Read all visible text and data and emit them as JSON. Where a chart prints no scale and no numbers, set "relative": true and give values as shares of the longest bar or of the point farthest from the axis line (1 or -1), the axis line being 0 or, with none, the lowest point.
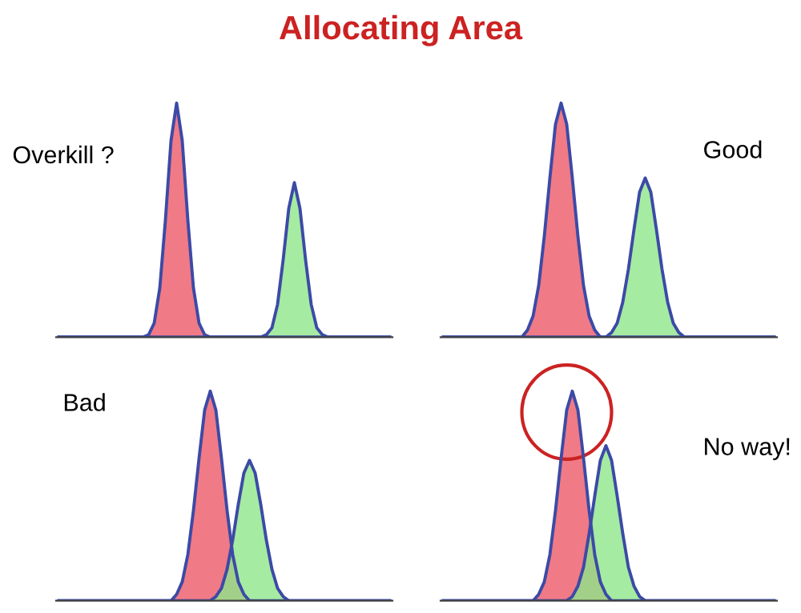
{
  "chart_data": [
    {
      "type": "area",
      "relative": true,
      "title": "Allocating Area",
      "annotations": [
        "Overkill ?"
      ],
      "categories": [
        null,
        null,
        null,
        null,
        null,
        null,
        null,
        null,
        null,
        null,
        null,
        null,
        null,
        null,
        null,
        null,
        null,
        null,
        null,
        null,
        null,
        null,
        null,
        null,
        null,
        null,
        null,
        null,
        null,
        null,
        null,
        null,
        null,
        null,
        null,
        null,
        null,
        null,
        null,
        null,
        null,
        null,
        null,
        null,
        null,
        null,
        null,
        null,
        null,
        null,
        null,
        null,
        null,
        null,
        null,
        null,
        null,
        null,
        null,
        null
      ],
      "series": [
        {
          "color": "#f07a86",
          "values": [
            0,
            0,
            0,
            0,
            0,
            0,
            0,
            0,
            0,
            0,
            0,
            0,
            0,
            0,
            0,
            0,
            0.01,
            0.06,
            0.21,
            0.5,
            0.84,
            1,
            0.84,
            0.5,
            0.21,
            0.06,
            0.01,
            0,
            0,
            0,
            0,
            0,
            0,
            0,
            0,
            0,
            0,
            0,
            0,
            0,
            0,
            0,
            0,
            0,
            0,
            0,
            0,
            0,
            0,
            0,
            0,
            0,
            0,
            0,
            0,
            0,
            0,
            0,
            0,
            0
          ]
        },
        {
          "color": "#8ee68a",
          "values": [
            0,
            0,
            0,
            0,
            0,
            0,
            0,
            0,
            0,
            0,
            0,
            0,
            0,
            0,
            0,
            0,
            0,
            0,
            0,
            0,
            0,
            0,
            0,
            0,
            0,
            0,
            0,
            0,
            0,
            0,
            0,
            0,
            0,
            0,
            0,
            0,
            0,
            0.01,
            0.04,
            0.14,
            0.33,
            0.55,
            0.66,
            0.55,
            0.33,
            0.14,
            0.04,
            0.01,
            0,
            0,
            0,
            0,
            0,
            0,
            0,
            0,
            0,
            0,
            0,
            0
          ]
        }
      ]
    },
    {
      "type": "area",
      "relative": true,
      "annotations": [
        "Good"
      ],
      "categories": [
        null,
        null,
        null,
        null,
        null,
        null,
        null,
        null,
        null,
        null,
        null,
        null,
        null,
        null,
        null,
        null,
        null,
        null,
        null,
        null,
        null,
        null,
        null,
        null,
        null,
        null,
        null,
        null,
        null,
        null,
        null,
        null,
        null,
        null,
        null,
        null,
        null,
        null,
        null,
        null,
        null,
        null,
        null,
        null,
        null,
        null,
        null,
        null,
        null,
        null,
        null,
        null,
        null,
        null,
        null,
        null,
        null,
        null,
        null,
        null
      ],
      "series": [
        {
          "color": "#f07a86",
          "values": [
            0,
            0,
            0,
            0,
            0,
            0,
            0,
            0,
            0,
            0,
            0,
            0,
            0,
            0,
            0,
            0.03,
            0.09,
            0.22,
            0.43,
            0.68,
            0.91,
            1,
            0.91,
            0.68,
            0.43,
            0.22,
            0.09,
            0.03,
            0,
            0,
            0,
            0,
            0,
            0,
            0,
            0,
            0,
            0,
            0,
            0,
            0,
            0,
            0,
            0,
            0,
            0,
            0,
            0,
            0,
            0,
            0,
            0,
            0,
            0,
            0,
            0,
            0,
            0,
            0,
            0
          ]
        },
        {
          "color": "#8ee68a",
          "values": [
            0,
            0,
            0,
            0,
            0,
            0,
            0,
            0,
            0,
            0,
            0,
            0,
            0,
            0,
            0,
            0,
            0,
            0,
            0,
            0,
            0,
            0,
            0,
            0,
            0,
            0,
            0,
            0,
            0,
            0,
            0.02,
            0.06,
            0.15,
            0.29,
            0.46,
            0.62,
            0.68,
            0.62,
            0.46,
            0.29,
            0.15,
            0.06,
            0.02,
            0,
            0,
            0,
            0,
            0,
            0,
            0,
            0,
            0,
            0,
            0,
            0,
            0,
            0,
            0,
            0,
            0
          ]
        }
      ]
    },
    {
      "type": "area",
      "relative": true,
      "annotations": [
        "Bad"
      ],
      "categories": [
        null,
        null,
        null,
        null,
        null,
        null,
        null,
        null,
        null,
        null,
        null,
        null,
        null,
        null,
        null,
        null,
        null,
        null,
        null,
        null,
        null,
        null,
        null,
        null,
        null,
        null,
        null,
        null,
        null,
        null,
        null,
        null,
        null,
        null,
        null,
        null,
        null,
        null,
        null,
        null,
        null,
        null,
        null,
        null,
        null,
        null,
        null,
        null,
        null,
        null,
        null,
        null,
        null,
        null,
        null,
        null,
        null,
        null,
        null,
        null
      ],
      "series": [
        {
          "color": "#f07a86",
          "values": [
            0,
            0,
            0,
            0,
            0,
            0,
            0,
            0,
            0,
            0,
            0,
            0,
            0,
            0,
            0,
            0,
            0,
            0,
            0,
            0,
            0,
            0.03,
            0.09,
            0.22,
            0.43,
            0.68,
            0.91,
            1,
            0.91,
            0.68,
            0.43,
            0.22,
            0.09,
            0.03,
            0,
            0,
            0,
            0,
            0,
            0,
            0,
            0,
            0,
            0,
            0,
            0,
            0,
            0,
            0,
            0,
            0,
            0,
            0,
            0,
            0,
            0,
            0,
            0,
            0,
            0
          ]
        },
        {
          "color": "#8ee68a",
          "values": [
            0,
            0,
            0,
            0,
            0,
            0,
            0,
            0,
            0,
            0,
            0,
            0,
            0,
            0,
            0,
            0,
            0,
            0,
            0,
            0,
            0,
            0,
            0,
            0,
            0,
            0,
            0,
            0,
            0.02,
            0.06,
            0.15,
            0.29,
            0.46,
            0.61,
            0.67,
            0.61,
            0.46,
            0.29,
            0.15,
            0.06,
            0.02,
            0,
            0,
            0,
            0,
            0,
            0,
            0,
            0,
            0,
            0,
            0,
            0,
            0,
            0,
            0,
            0,
            0,
            0,
            0
          ]
        }
      ]
    },
    {
      "type": "area",
      "relative": true,
      "annotations": [
        "No way!"
      ],
      "categories": [
        null,
        null,
        null,
        null,
        null,
        null,
        null,
        null,
        null,
        null,
        null,
        null,
        null,
        null,
        null,
        null,
        null,
        null,
        null,
        null,
        null,
        null,
        null,
        null,
        null,
        null,
        null,
        null,
        null,
        null,
        null,
        null,
        null,
        null,
        null,
        null,
        null,
        null,
        null,
        null,
        null,
        null,
        null,
        null,
        null,
        null,
        null,
        null,
        null,
        null,
        null,
        null,
        null,
        null,
        null,
        null,
        null,
        null,
        null,
        null
      ],
      "series": [
        {
          "color": "#f07a86",
          "values": [
            0,
            0,
            0,
            0,
            0,
            0,
            0,
            0,
            0,
            0,
            0,
            0,
            0,
            0,
            0,
            0,
            0,
            0.03,
            0.09,
            0.22,
            0.43,
            0.68,
            0.91,
            1,
            0.91,
            0.68,
            0.43,
            0.22,
            0.09,
            0.03,
            0,
            0,
            0,
            0,
            0,
            0,
            0,
            0,
            0,
            0,
            0,
            0,
            0,
            0,
            0,
            0,
            0,
            0,
            0,
            0,
            0,
            0,
            0,
            0,
            0,
            0,
            0,
            0,
            0,
            0
          ]
        },
        {
          "color": "#8ee68a",
          "values": [
            0,
            0,
            0,
            0,
            0,
            0,
            0,
            0,
            0,
            0,
            0,
            0,
            0,
            0,
            0,
            0,
            0,
            0,
            0,
            0,
            0,
            0,
            0,
            0.02,
            0.07,
            0.16,
            0.32,
            0.5,
            0.67,
            0.74,
            0.67,
            0.5,
            0.32,
            0.16,
            0.07,
            0.02,
            0,
            0,
            0,
            0,
            0,
            0,
            0,
            0,
            0,
            0,
            0,
            0,
            0,
            0,
            0,
            0,
            0,
            0,
            0,
            0,
            0,
            0,
            0,
            0
          ]
        }
      ]
    }
  ]
}
